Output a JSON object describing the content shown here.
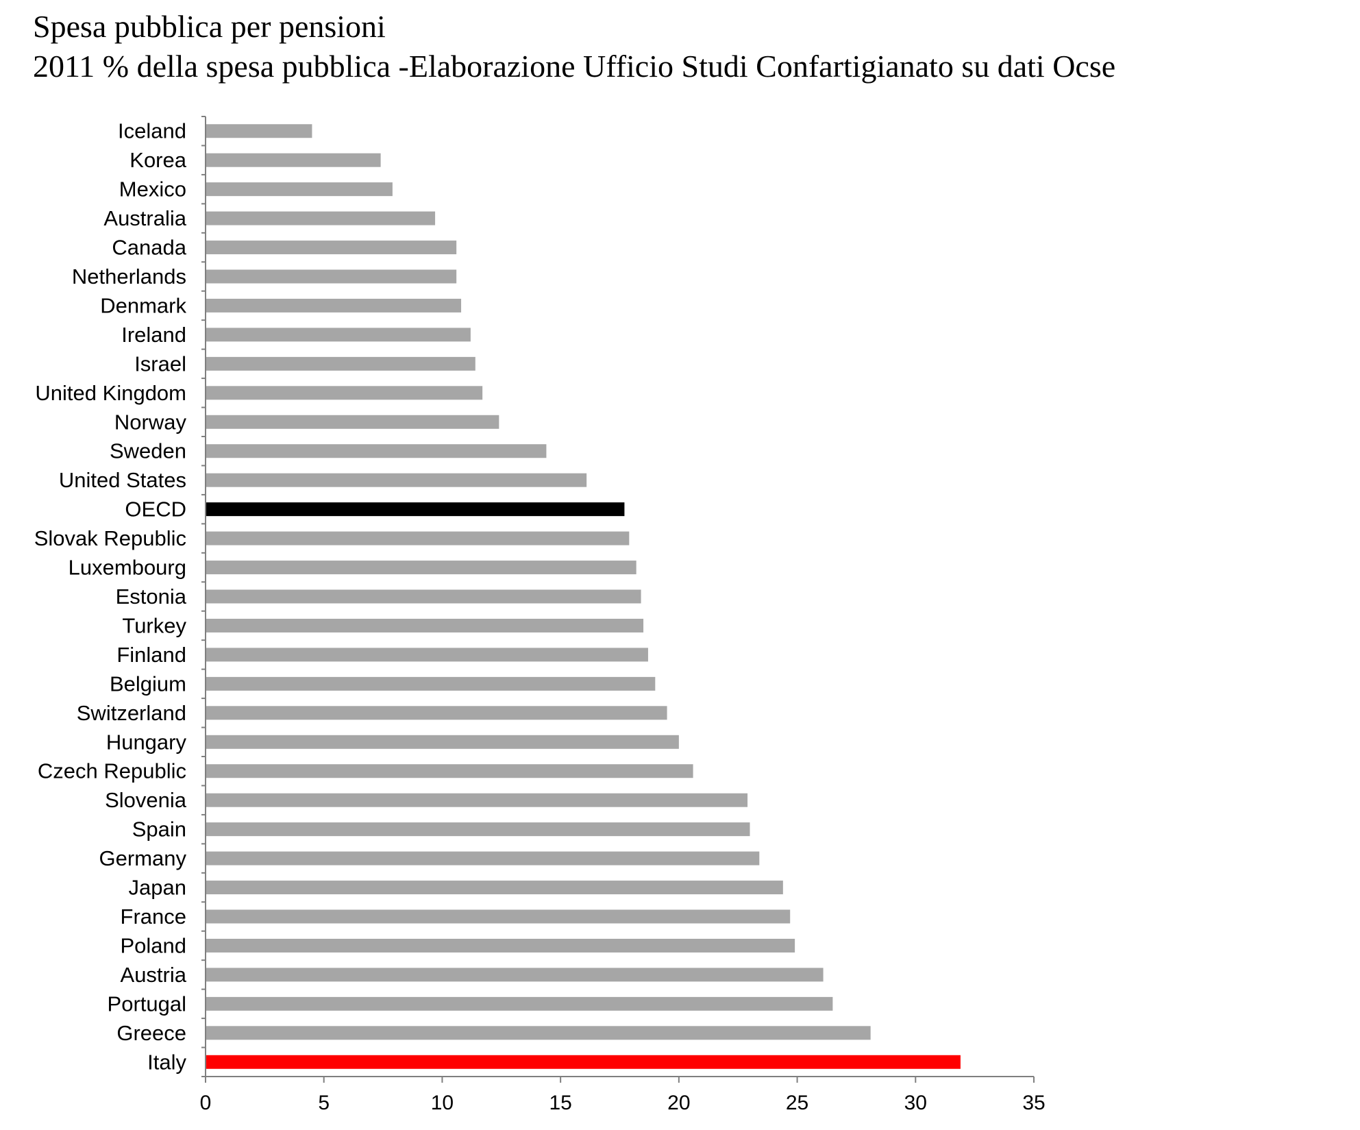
{
  "header": {
    "title": "Spesa pubblica per pensioni",
    "subtitle": "2011 % della spesa pubblica -Elaborazione Ufficio Studi Confartigianato su dati Ocse"
  },
  "chart_data": {
    "type": "bar",
    "orientation": "horizontal",
    "title": "Spesa pubblica per pensioni",
    "subtitle": "2011 % della spesa pubblica -Elaborazione Ufficio Studi Confartigianato su dati Ocse",
    "xlabel": "",
    "ylabel": "",
    "xlim": [
      0,
      35
    ],
    "x_ticks": [
      0,
      5,
      10,
      15,
      20,
      25,
      30,
      35
    ],
    "grid": false,
    "legend": "none",
    "colors": {
      "default": "#a6a6a6",
      "OECD": "#000000",
      "Italy": "#ff0000"
    },
    "categories": [
      "Iceland",
      "Korea",
      "Mexico",
      "Australia",
      "Canada",
      "Netherlands",
      "Denmark",
      "Ireland",
      "Israel",
      "United Kingdom",
      "Norway",
      "Sweden",
      "United States",
      "OECD",
      "Slovak Republic",
      "Luxembourg",
      "Estonia",
      "Turkey",
      "Finland",
      "Belgium",
      "Switzerland",
      "Hungary",
      "Czech Republic",
      "Slovenia",
      "Spain",
      "Germany",
      "Japan",
      "France",
      "Poland",
      "Austria",
      "Portugal",
      "Greece",
      "Italy"
    ],
    "values": [
      4.5,
      7.4,
      7.9,
      9.7,
      10.6,
      10.6,
      10.8,
      11.2,
      11.4,
      11.7,
      12.4,
      14.4,
      16.1,
      17.7,
      17.9,
      18.2,
      18.4,
      18.5,
      18.7,
      19.0,
      19.5,
      20.0,
      20.6,
      22.9,
      23.0,
      23.4,
      24.4,
      24.7,
      24.9,
      26.1,
      26.5,
      28.1,
      31.9
    ]
  }
}
